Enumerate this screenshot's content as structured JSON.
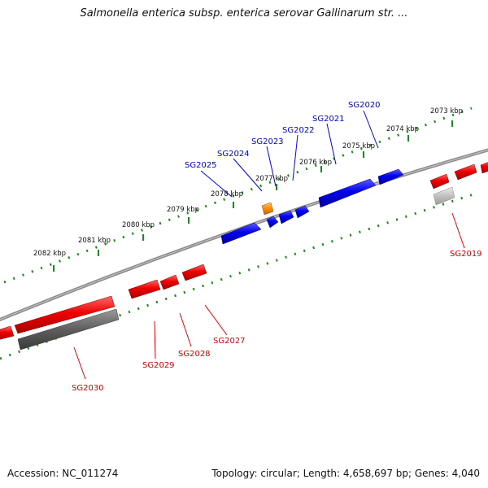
{
  "title": "Salmonella enterica subsp. enterica serovar Gallinarum str. ...",
  "footer": {
    "accession": "Accession: NC_011274",
    "summary": "Topology: circular; Length: 4,658,697 bp; Genes: 4,040"
  },
  "colors": {
    "forward_gene": "#0000ee",
    "reverse_gene": "#ee0000",
    "special_gene": "#ff8c00",
    "pseudo_gene_dark": "#666666",
    "pseudo_gene_light": "#bbbbbb",
    "backbone": "#777777",
    "ruler": "#1a8c1a"
  },
  "scale_labels": [
    "2073 kbp",
    "2074 kbp",
    "2075 kbp",
    "2076 kbp",
    "2077 kbp",
    "2078 kbp",
    "2079 kbp",
    "2080 kbp",
    "2081 kbp",
    "2082 kbp"
  ],
  "gene_labels": {
    "forward": [
      "SG2020",
      "SG2021",
      "SG2022",
      "SG2023",
      "SG2024",
      "SG2025"
    ],
    "reverse": [
      "SG2019",
      "SG2027",
      "SG2028",
      "SG2029",
      "SG2030"
    ]
  }
}
